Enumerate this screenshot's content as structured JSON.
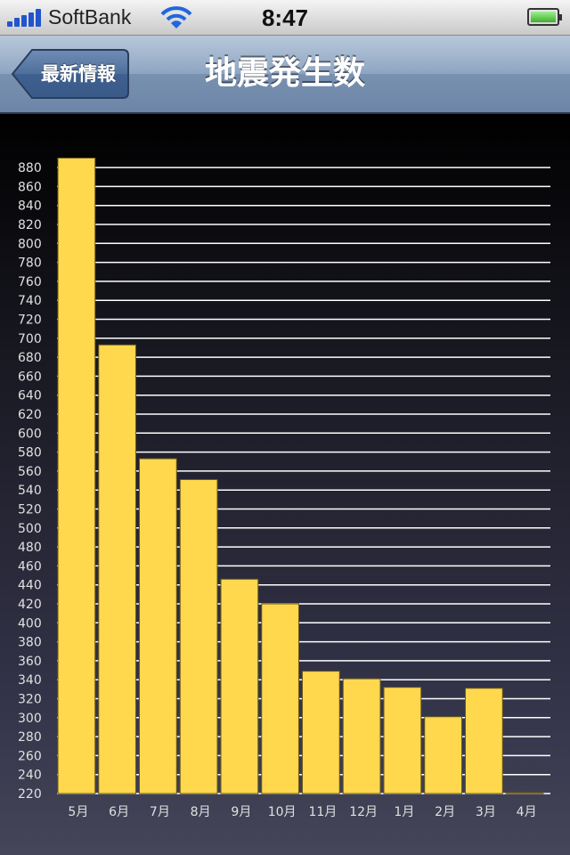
{
  "status_bar": {
    "carrier": "SoftBank",
    "time": "8:47",
    "battery_level": 1.0
  },
  "nav": {
    "back_label": "最新情報",
    "title": "地震発生数"
  },
  "colors": {
    "bar": "#ffd84d",
    "bar_edge": "#6b5a1a",
    "grid": "#ffffff",
    "tick_text": "#e0e0e0"
  },
  "chart_data": {
    "type": "bar",
    "title": "",
    "xlabel": "",
    "ylabel": "",
    "grid": true,
    "ylim": [
      220,
      890
    ],
    "y_ticks": [
      220,
      240,
      260,
      280,
      300,
      320,
      340,
      360,
      380,
      400,
      420,
      440,
      460,
      480,
      500,
      520,
      540,
      560,
      580,
      600,
      620,
      640,
      660,
      680,
      700,
      720,
      740,
      760,
      780,
      800,
      820,
      840,
      860,
      880
    ],
    "categories": [
      "5月",
      "6月",
      "7月",
      "8月",
      "9月",
      "10月",
      "11月",
      "12月",
      "1月",
      "2月",
      "3月",
      "4月"
    ],
    "values": [
      890,
      693,
      573,
      551,
      446,
      420,
      349,
      341,
      332,
      301,
      331,
      221
    ]
  }
}
